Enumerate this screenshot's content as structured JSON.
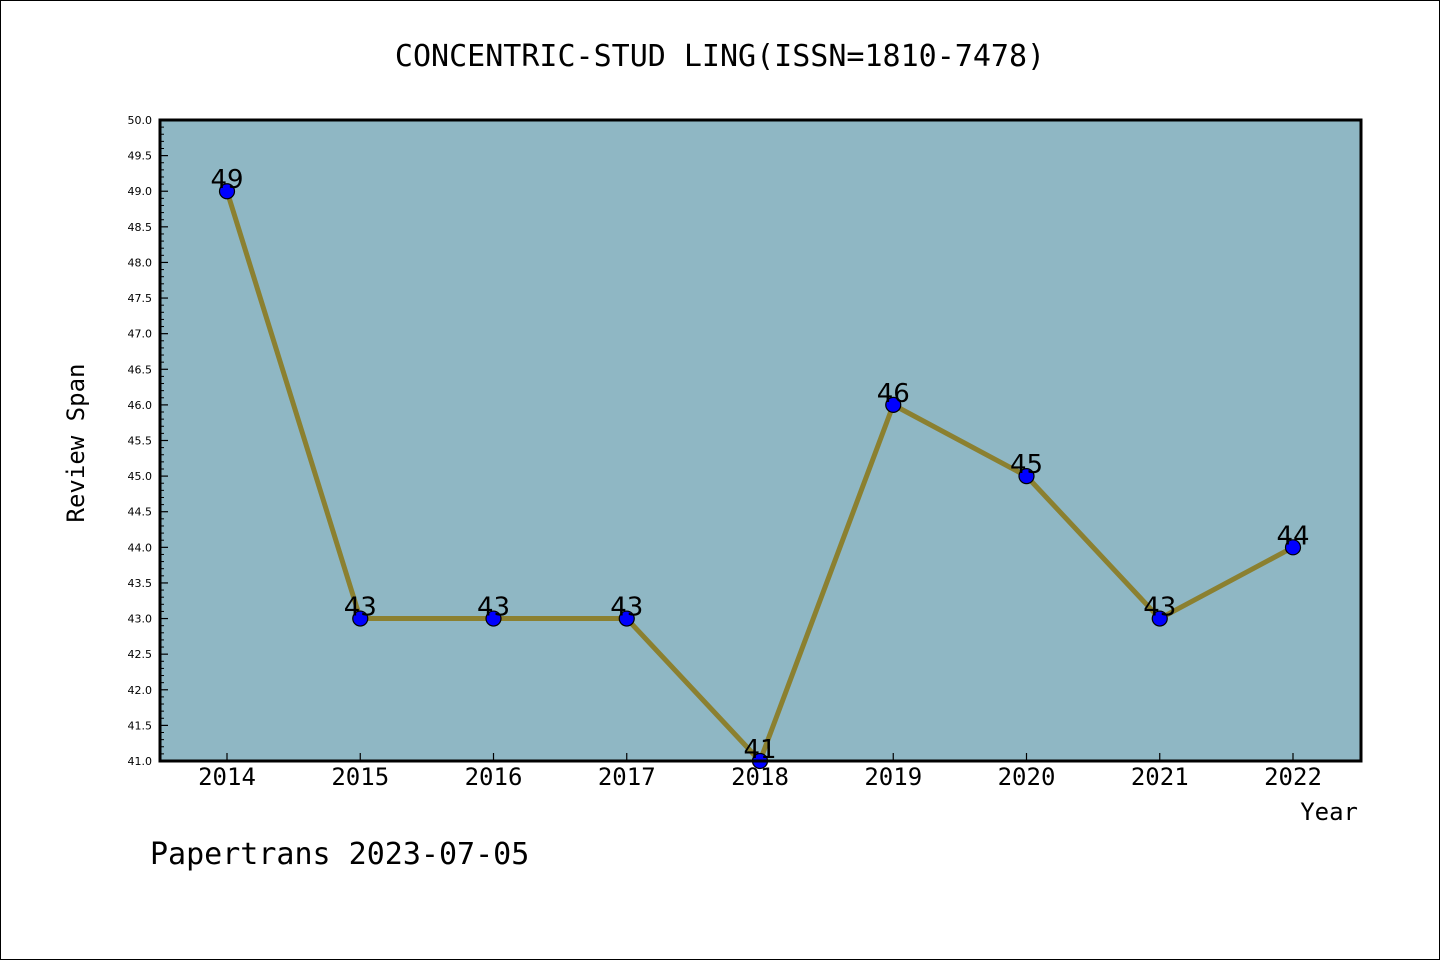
{
  "chart_data": {
    "type": "line",
    "title": "CONCENTRIC-STUD LING(ISSN=1810-7478)",
    "xlabel": "Year",
    "ylabel": "Review Span",
    "categories": [
      "2014",
      "2015",
      "2016",
      "2017",
      "2018",
      "2019",
      "2020",
      "2021",
      "2022"
    ],
    "series": [
      {
        "values": [
          49,
          43,
          43,
          43,
          41,
          46,
          45,
          43,
          44
        ]
      }
    ],
    "data_labels": [
      "49",
      "43",
      "43",
      "43",
      "41",
      "46",
      "45",
      "43",
      "44"
    ],
    "ylim": [
      41.0,
      50.0
    ],
    "y_ticks": [
      "41.0",
      "41.5",
      "42.0",
      "42.5",
      "43.0",
      "43.5",
      "44.0",
      "44.5",
      "45.0",
      "45.5",
      "46.0",
      "46.5",
      "47.0",
      "47.5",
      "48.0",
      "48.5",
      "49.0",
      "49.5",
      "50.0"
    ],
    "grid": false,
    "legend": "none",
    "colors": {
      "plot_background": "#8fb7c4",
      "line": "#8b8030",
      "marker": "#0000ff"
    }
  },
  "footer": {
    "text": "Papertrans 2023-07-05"
  }
}
